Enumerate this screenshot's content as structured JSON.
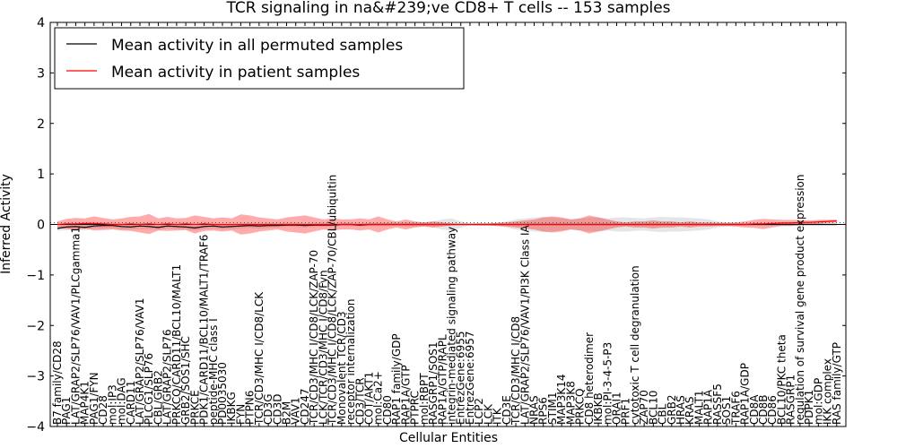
{
  "chart_data": {
    "type": "line",
    "title": "TCR signaling in na&#239;ve CD8+ T cells -- 153 samples",
    "xlabel": "Cellular Entities",
    "ylabel": "Inferred Activity",
    "ylim": [
      -4,
      4
    ],
    "yticks": [
      -4,
      -3,
      -2,
      -1,
      0,
      1,
      2,
      3,
      4
    ],
    "ytick_labels": [
      "−4",
      "−3",
      "−2",
      "−1",
      "0",
      "1",
      "2",
      "3",
      "4"
    ],
    "legend": {
      "position": "top-left",
      "entries": [
        {
          "label": "Mean activity in all permuted samples",
          "color": "#000000"
        },
        {
          "label": "Mean activity in patient samples",
          "color": "#ff0000"
        }
      ]
    },
    "categories": [
      "B7 family/CD28",
      "PAG1",
      "LAT/GRAP2/SLP76/VAV1/PLCgamma1",
      "MAP4K1",
      "PAG1/FYN",
      "CD28",
      "mol:IP3",
      "mol:DAG",
      "CARD11",
      "LAT/GRAP2/SLP76/VAV1",
      "PLCG1/SLP76",
      "CBL/GRB2",
      "LAT/GRAP2/SLP76",
      "PRKCQ/CARD11/BCL10/MALT1",
      "GRB2/SOS1/SHC",
      "PRKCE",
      "PDK1/CARD11/BCL10/MALT1/TRAF6",
      "peptide-MHC class I",
      "PD0035030",
      "IKBKG",
      "FYN",
      "PTPN6",
      "TCR/CD3/MHC I/CD8/LCK",
      "CD3G",
      "CD3D",
      "B2M",
      "VAV1",
      "CD247",
      "TCR/CD3/MHC I/CD8/LCK/ZAP-70",
      "LCK/TCR/CD3/MHC I/CD8/Fyn",
      "TCR/CD3/MHC I/CD8/LCK/ZAP-70/CBL/ubiquitin",
      "Monovalent TCR/CD3",
      "receptor internalization",
      "CD3/TCR",
      "COT/AKT1",
      "mol:Ca2+",
      "CD80",
      "RAP1 family/GDP",
      "RAP1A/GTP",
      "PTPRC",
      "mol:RBPT",
      "RASGRP1/SOS1",
      "RAP1A/GTP/RAPL",
      "integrin-mediated signaling pathway",
      "EntrezGene:6955",
      "EntrezGene:6957",
      "LCP2",
      "LCK",
      "ITK",
      "CD3E",
      "TCR/CD3/MHC I/CD8",
      "LAT/GRAP2/SLP76/VAV1/PI3K Class IA",
      "NRAS",
      "RPS6",
      "STIM1",
      "MAP3K14",
      "MAP3K8",
      "PRKCQ",
      "CD8 heterodimer",
      "IKBKB",
      "mol:PI-3-4-5-P3",
      "ORAI1",
      "PRF1",
      "cytotoxic T cell degranulation",
      "ZAP70",
      "BCL10",
      "CBL",
      "GRB2",
      "HRAS",
      "KRAS",
      "MALT1",
      "RAP1A",
      "RASSF5",
      "SOS1",
      "TRAF6",
      "RAP1A/GDP",
      "CD8A",
      "CD8B",
      "CD86",
      "BCL10/PKC theta",
      "RASGRP1",
      "regulation of survival gene product expression",
      "PDPK1",
      "mol:GDP",
      "IKK complex",
      "RAS family/GTP"
    ],
    "series": [
      {
        "name": "Mean activity in all permuted samples",
        "color": "#000000",
        "values": [
          -0.08,
          -0.05,
          -0.04,
          -0.06,
          -0.03,
          -0.02,
          -0.02,
          -0.04,
          -0.05,
          -0.03,
          -0.04,
          -0.06,
          -0.03,
          -0.04,
          -0.05,
          -0.07,
          -0.04,
          -0.03,
          -0.05,
          -0.04,
          -0.03,
          -0.02,
          -0.03,
          -0.02,
          -0.02,
          -0.01,
          -0.01,
          -0.02,
          -0.01,
          -0.01,
          -0.01,
          0.0,
          0.0,
          -0.01,
          0.0,
          0.0,
          0.0,
          0.0,
          0.0,
          0.0,
          0.0,
          0.0,
          0.0,
          0.0,
          0.0,
          0.0,
          0.0,
          0.0,
          0.0,
          0.0,
          0.0,
          0.0,
          0.0,
          0.0,
          0.0,
          0.0,
          0.0,
          0.0,
          0.0,
          0.0,
          0.0,
          0.0,
          0.0,
          0.0,
          0.0,
          0.0,
          0.0,
          0.0,
          0.0,
          0.0,
          0.0,
          0.0,
          0.0,
          0.0,
          0.0,
          0.0,
          0.0,
          0.0,
          0.0,
          0.0,
          0.0,
          0.0,
          0.0,
          0.0,
          0.0,
          0.0
        ],
        "band": [
          0.05,
          0.06,
          0.05,
          0.06,
          0.05,
          0.06,
          0.05,
          0.06,
          0.05,
          0.06,
          0.05,
          0.05,
          0.05,
          0.05,
          0.05,
          0.05,
          0.05,
          0.05,
          0.05,
          0.05,
          0.05,
          0.05,
          0.05,
          0.05,
          0.04,
          0.04,
          0.04,
          0.04,
          0.04,
          0.04,
          0.04,
          0.03,
          0.03,
          0.03,
          0.03,
          0.03,
          0.03,
          0.03,
          0.04,
          0.04,
          0.04,
          0.06,
          0.1,
          0.12,
          0.06,
          0.02,
          0.02,
          0.02,
          0.03,
          0.06,
          0.1,
          0.12,
          0.14,
          0.15,
          0.14,
          0.12,
          0.1,
          0.12,
          0.14,
          0.14,
          0.12,
          0.14,
          0.14,
          0.13,
          0.12,
          0.14,
          0.15,
          0.14,
          0.14,
          0.13,
          0.12,
          0.1,
          0.06,
          0.04,
          0.03,
          0.02,
          0.02,
          0.02,
          0.02,
          0.02,
          0.02,
          0.02,
          0.02,
          0.02,
          0.02,
          0.02
        ]
      },
      {
        "name": "Mean activity in patient samples",
        "color": "#ff0000",
        "values": [
          0.0,
          0.01,
          0.01,
          0.02,
          0.02,
          0.01,
          0.0,
          0.0,
          0.01,
          0.0,
          0.01,
          0.0,
          0.01,
          0.0,
          0.01,
          0.0,
          0.01,
          0.0,
          0.0,
          0.0,
          0.0,
          0.0,
          0.0,
          0.0,
          0.0,
          0.0,
          0.0,
          0.0,
          0.0,
          0.0,
          0.0,
          0.0,
          0.0,
          0.0,
          0.0,
          0.0,
          0.0,
          0.0,
          0.0,
          0.0,
          0.0,
          0.0,
          0.0,
          0.0,
          0.0,
          0.0,
          0.0,
          0.0,
          0.0,
          0.0,
          0.0,
          0.0,
          0.0,
          0.0,
          0.0,
          0.0,
          0.0,
          0.0,
          0.0,
          0.0,
          0.0,
          0.0,
          0.0,
          0.0,
          0.0,
          0.0,
          0.0,
          0.0,
          0.0,
          0.0,
          0.0,
          0.0,
          0.0,
          0.0,
          0.0,
          0.0,
          0.01,
          0.01,
          0.02,
          0.03,
          0.03,
          0.04,
          0.04,
          0.05,
          0.06,
          0.07
        ],
        "band": [
          0.06,
          0.1,
          0.12,
          0.1,
          0.14,
          0.12,
          0.1,
          0.12,
          0.14,
          0.16,
          0.2,
          0.12,
          0.14,
          0.12,
          0.12,
          0.18,
          0.14,
          0.12,
          0.14,
          0.12,
          0.2,
          0.18,
          0.14,
          0.12,
          0.1,
          0.14,
          0.16,
          0.18,
          0.14,
          0.1,
          0.12,
          0.1,
          0.1,
          0.12,
          0.1,
          0.16,
          0.1,
          0.06,
          0.1,
          0.06,
          0.04,
          0.06,
          0.04,
          0.02,
          0.01,
          0.01,
          0.02,
          0.02,
          0.03,
          0.04,
          0.06,
          0.08,
          0.1,
          0.14,
          0.16,
          0.14,
          0.1,
          0.12,
          0.18,
          0.14,
          0.1,
          0.06,
          0.04,
          0.06,
          0.06,
          0.08,
          0.06,
          0.06,
          0.04,
          0.06,
          0.04,
          0.04,
          0.03,
          0.03,
          0.04,
          0.06,
          0.08,
          0.1,
          0.08,
          0.06,
          0.06,
          0.05,
          0.04,
          0.04,
          0.03,
          0.03
        ]
      }
    ]
  }
}
